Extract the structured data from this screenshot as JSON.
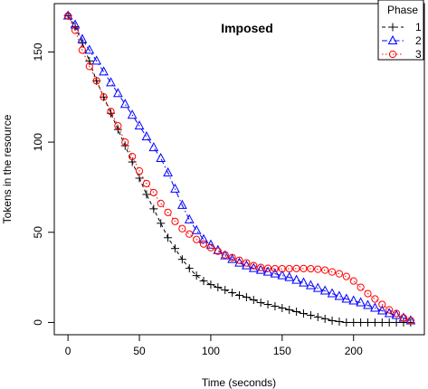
{
  "chart_data": {
    "type": "line",
    "title": "Imposed",
    "xlabel": "Time (seconds)",
    "ylabel": "Tokens in the resource",
    "xlim": [
      -9.6,
      249.6
    ],
    "ylim": [
      -6.8,
      176.8
    ],
    "xticks": [
      0,
      50,
      100,
      150,
      200
    ],
    "yticks": [
      0,
      50,
      100,
      150
    ],
    "grid": false,
    "legend": {
      "title": "Phase",
      "placement": "top-right"
    },
    "x": [
      0,
      5,
      10,
      15,
      20,
      25,
      30,
      35,
      40,
      45,
      50,
      55,
      60,
      65,
      70,
      75,
      80,
      85,
      90,
      95,
      100,
      105,
      110,
      115,
      120,
      125,
      130,
      135,
      140,
      145,
      150,
      155,
      160,
      165,
      170,
      175,
      180,
      185,
      190,
      195,
      200,
      205,
      210,
      215,
      220,
      225,
      230,
      235,
      240
    ],
    "series": [
      {
        "name": "1",
        "marker": "plus",
        "color": "#000000",
        "line_style": "dashed",
        "values": [
          170,
          164,
          155,
          145,
          134,
          125,
          116,
          107,
          98,
          89,
          80,
          71,
          63,
          55,
          47,
          41,
          35,
          30,
          26,
          23,
          21,
          19.5,
          18,
          16.5,
          15,
          14,
          12.5,
          11,
          10,
          9,
          8,
          7,
          6,
          5,
          4,
          3,
          2,
          1,
          0.5,
          0,
          0,
          0,
          0,
          0,
          0,
          0,
          0,
          0,
          0
        ]
      },
      {
        "name": "2",
        "marker": "triangle",
        "color": "#0000ff",
        "line_style": "dashdot",
        "values": [
          170,
          165,
          157,
          151,
          145,
          139,
          133,
          127,
          121,
          115,
          109,
          103,
          97,
          91,
          83,
          74,
          65,
          57,
          51,
          46,
          43,
          40,
          37,
          35,
          33,
          31.5,
          30,
          29,
          28,
          27,
          26,
          25,
          23.5,
          22,
          20.5,
          19,
          17.5,
          16,
          14.5,
          13,
          12,
          11,
          9.5,
          8,
          6.5,
          5,
          4,
          2.5,
          1
        ]
      },
      {
        "name": "3",
        "marker": "circle",
        "color": "#ff0000",
        "line_style": "dotted",
        "values": [
          170,
          162,
          151,
          142,
          134,
          125,
          117,
          109,
          100,
          92,
          84,
          77,
          72,
          66,
          61,
          56,
          52,
          49,
          46,
          43.5,
          41.5,
          39.5,
          37.5,
          36,
          34.5,
          33,
          31.5,
          30.5,
          30,
          29.8,
          29.8,
          29.8,
          29.9,
          29.9,
          29.8,
          29.5,
          29,
          28,
          27,
          25.5,
          23,
          19.5,
          16,
          13,
          10,
          7,
          5,
          2.5,
          1
        ]
      }
    ]
  }
}
